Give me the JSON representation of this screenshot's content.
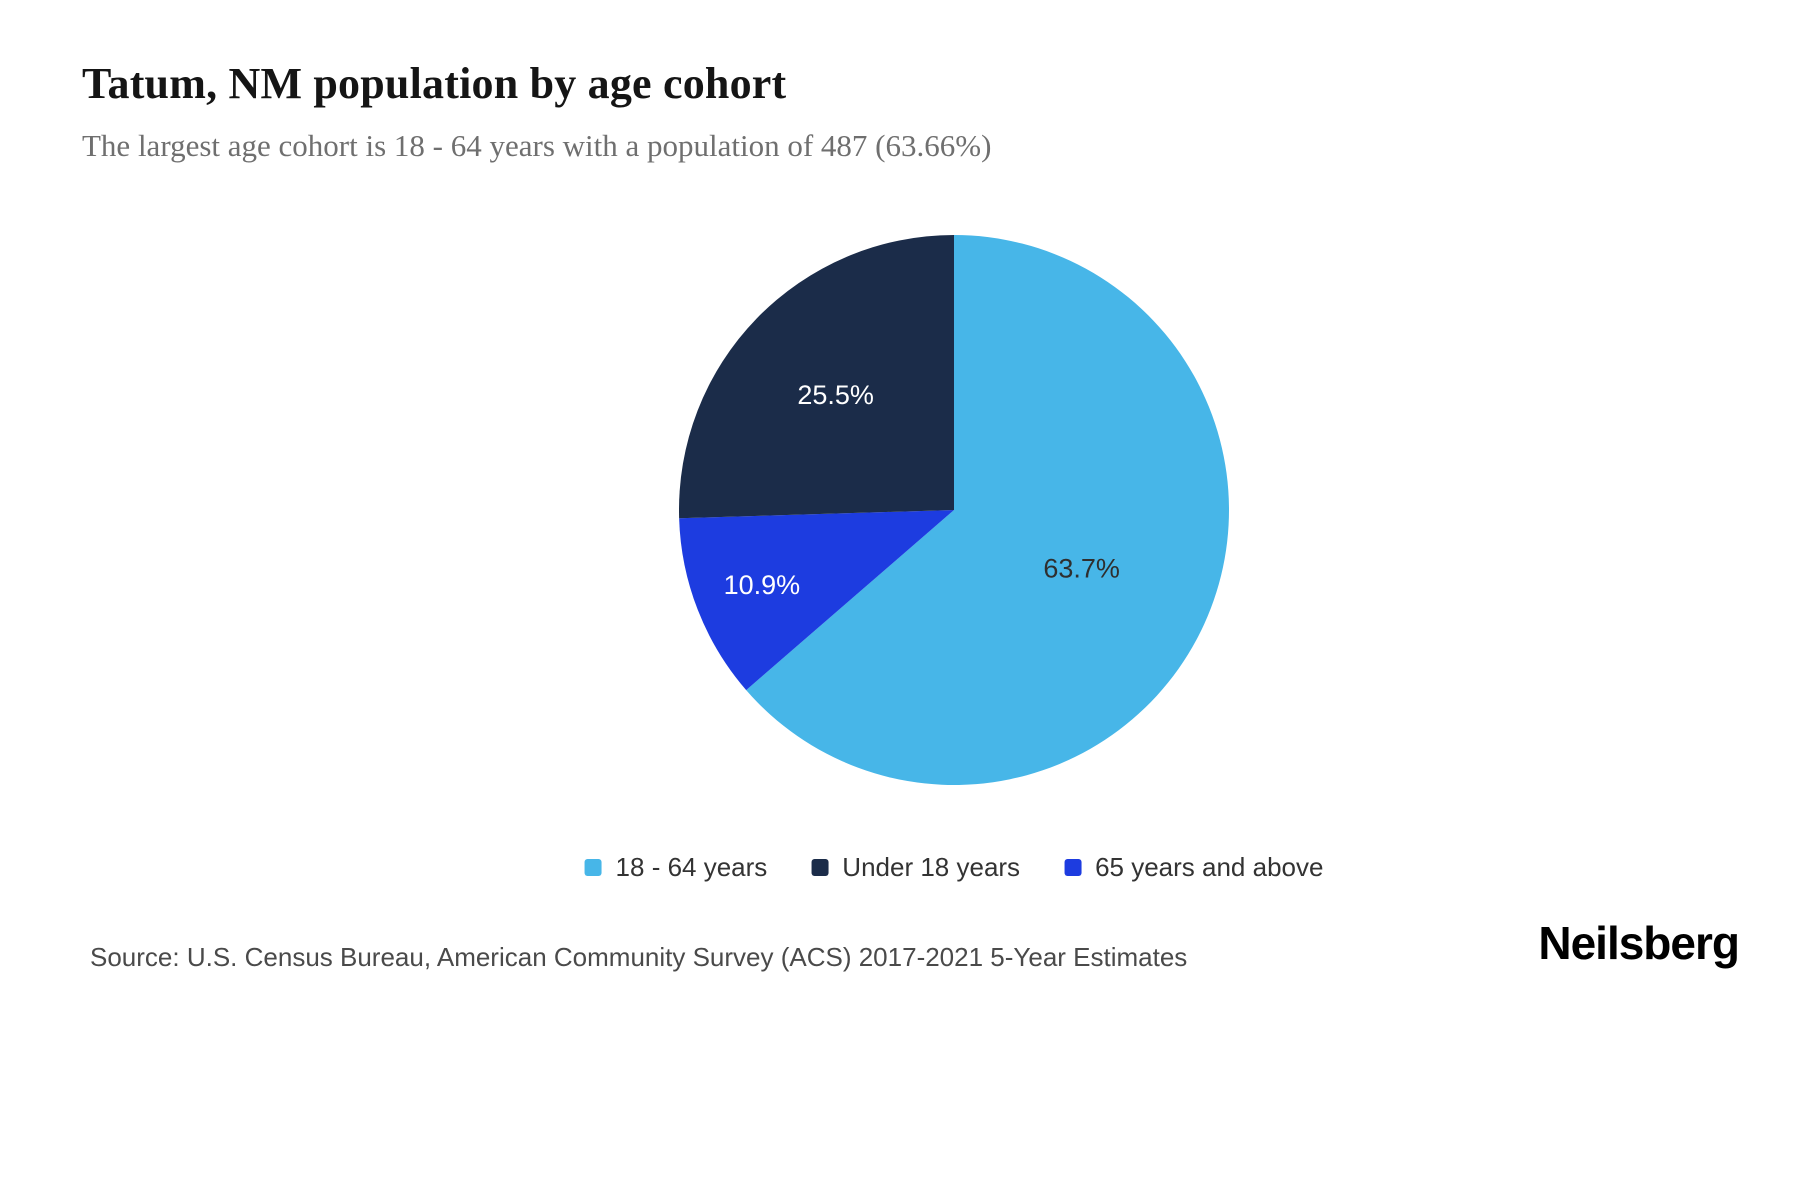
{
  "header": {
    "title": "Tatum, NM population by age cohort",
    "subtitle": "The largest age cohort is 18 - 64 years with a population of 487 (63.66%)"
  },
  "chart_data": {
    "type": "pie",
    "title": "Tatum, NM population by age cohort",
    "subtitle": "The largest age cohort is 18 - 64 years with a population of 487 (63.66%)",
    "unit": "%",
    "slices": [
      {
        "label": "18 - 64 years",
        "value": 63.7,
        "display": "63.7%",
        "color": "#47b6e8",
        "label_color": "#2f2f2f"
      },
      {
        "label": "Under 18 years",
        "value": 25.5,
        "display": "25.5%",
        "color": "#1b2c49",
        "label_color": "#ffffff"
      },
      {
        "label": "65 years and above",
        "value": 10.9,
        "display": "10.9%",
        "color": "#1d3ce0",
        "label_color": "#ffffff"
      }
    ],
    "draw_order": [
      0,
      2,
      1
    ],
    "start_angle_deg": 0,
    "direction": "clockwise",
    "legend_position": "bottom"
  },
  "footer": {
    "source": "Source: U.S. Census Bureau, American Community Survey (ACS) 2017-2021 5-Year Estimates",
    "brand": "Neilsberg"
  }
}
